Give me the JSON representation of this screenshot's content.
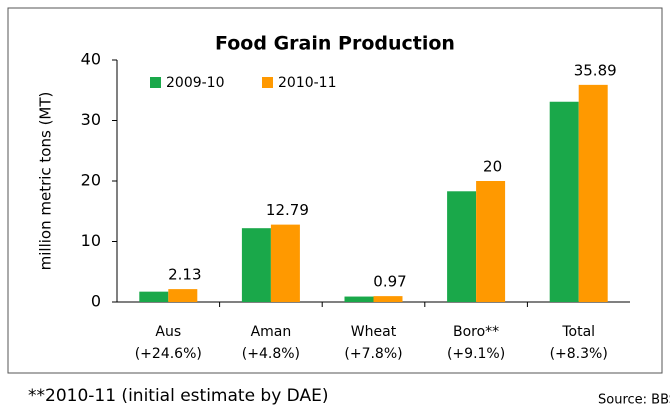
{
  "chart_data": {
    "type": "bar",
    "title": "Food Grain Production",
    "y_label": "million metric tons (MT)",
    "categories": [
      [
        "Aus",
        "(+24.6%)"
      ],
      [
        "Aman",
        "(+4.8%)"
      ],
      [
        "Wheat",
        "(+7.8%)"
      ],
      [
        "Boro**",
        "(+9.1%)"
      ],
      [
        "Total",
        "(+8.3%)"
      ]
    ],
    "series": [
      {
        "name": "2009-10",
        "color": "#1aa84a",
        "values": [
          1.71,
          12.2,
          0.9,
          18.3,
          33.1
        ]
      },
      {
        "name": "2010-11",
        "color": "#ff9900",
        "values": [
          2.13,
          12.79,
          0.97,
          20,
          35.89
        ]
      }
    ],
    "value_label_series": [
      1
    ],
    "ylim": [
      0,
      40
    ],
    "yticks": [
      0,
      10,
      20,
      30,
      40
    ],
    "grid": false,
    "legend": "top-left",
    "footnote": "**2010-11 (initial estimate by DAE)",
    "source": "Source: BBS"
  }
}
